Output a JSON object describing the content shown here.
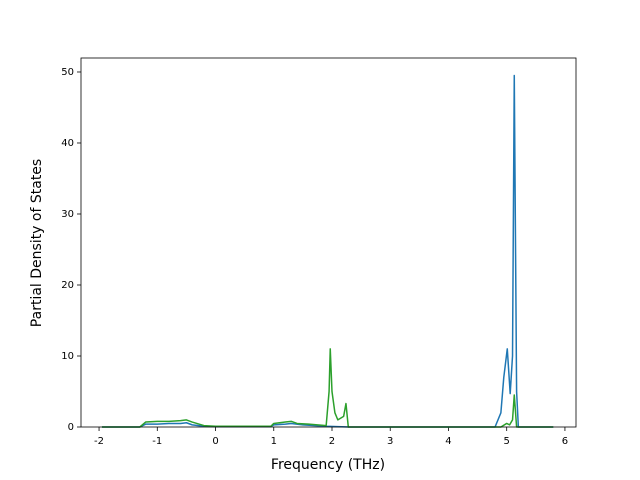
{
  "chart_data": {
    "type": "line",
    "xlabel": "Frequency (THz)",
    "ylabel": "Partial Density of States",
    "xlim": [
      -2.31,
      6.19
    ],
    "ylim": [
      0,
      51.97
    ],
    "xticks": [
      -2,
      -1,
      0,
      1,
      2,
      3,
      4,
      5,
      6
    ],
    "yticks": [
      0,
      10,
      20,
      30,
      40,
      50
    ],
    "series": [
      {
        "color": "#1f77b4",
        "x": [
          -1.95,
          -1.3,
          -1.2,
          -1.0,
          -0.8,
          -0.6,
          -0.5,
          -0.4,
          -0.2,
          0,
          0.5,
          0.95,
          1.0,
          1.2,
          1.3,
          1.5,
          1.9,
          2.3,
          4.8,
          4.9,
          4.95,
          5.01,
          5.06,
          5.1,
          5.13,
          5.17,
          5.2,
          5.8
        ],
        "values": [
          0,
          0,
          0.4,
          0.4,
          0.5,
          0.5,
          0.6,
          0.3,
          0.1,
          0.05,
          0.05,
          0.05,
          0.3,
          0.4,
          0.5,
          0.3,
          0.1,
          0,
          0,
          2,
          7,
          11,
          4.7,
          10,
          49.5,
          5,
          0,
          0
        ]
      },
      {
        "color": "#2ca02c",
        "x": [
          -1.95,
          -1.3,
          -1.2,
          -1.0,
          -0.8,
          -0.6,
          -0.5,
          -0.4,
          -0.2,
          0,
          0.5,
          0.95,
          1.0,
          1.2,
          1.3,
          1.4,
          1.6,
          1.9,
          1.95,
          1.97,
          2.0,
          2.05,
          2.1,
          2.2,
          2.24,
          2.28,
          2.5,
          4.9,
          5.0,
          5.05,
          5.1,
          5.13,
          5.17,
          5.2,
          5.8
        ],
        "values": [
          0,
          0,
          0.7,
          0.8,
          0.8,
          0.9,
          1.0,
          0.7,
          0.2,
          0.1,
          0.1,
          0.1,
          0.5,
          0.7,
          0.8,
          0.5,
          0.4,
          0.2,
          5,
          11,
          5,
          2,
          1,
          1.5,
          3.3,
          0,
          0,
          0,
          0.5,
          0.3,
          1,
          4.5,
          0,
          0,
          0
        ]
      }
    ]
  }
}
